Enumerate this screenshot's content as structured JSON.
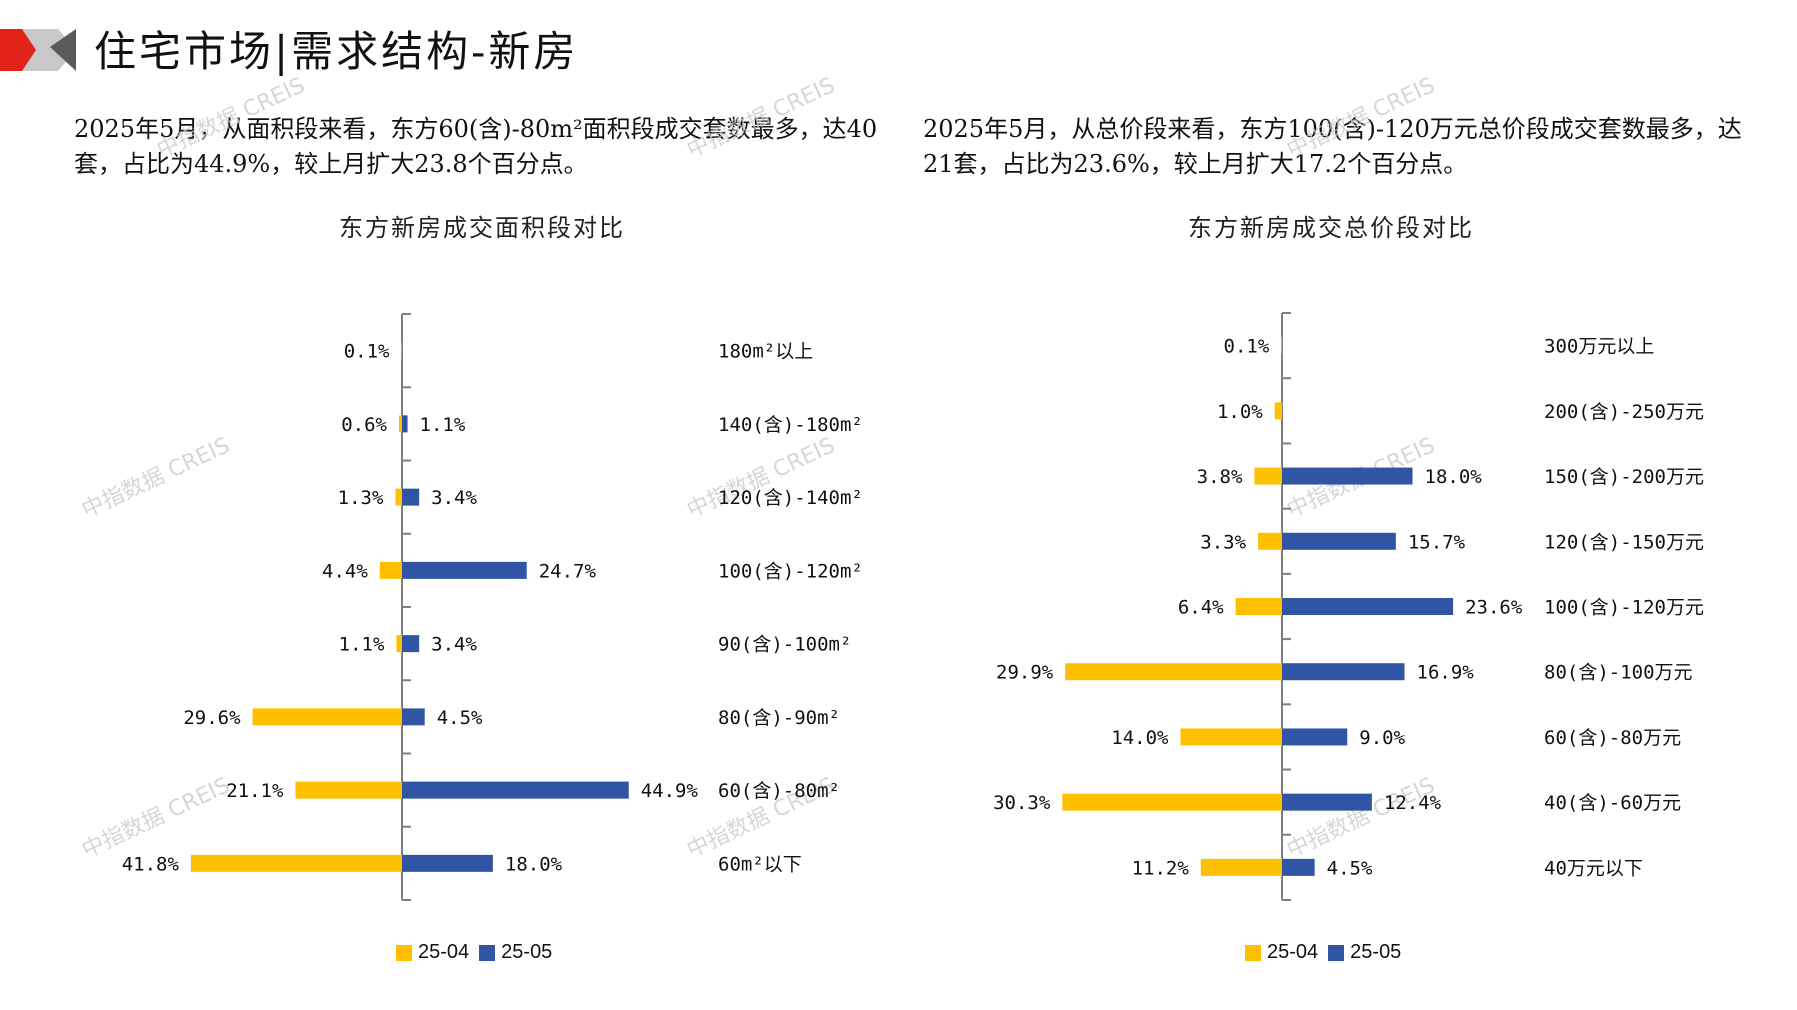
{
  "page": {
    "title": "住宅市场|需求结构-新房",
    "watermark": "中指数据 CREIS",
    "colors": {
      "prev": "#FFC000",
      "curr": "#2F55A4",
      "accent_red": "#E2231A",
      "gray": "#BFBFBF"
    }
  },
  "left": {
    "description": "2025年5月，从面积段来看，东方60(含)-80m²面积段成交套数最多，达40套，占比为44.9%，较上月扩大23.8个百分点。",
    "legend": {
      "prev": "25-04",
      "curr": "25-05"
    }
  },
  "right": {
    "description": "2025年5月，从总价段来看，东方100(含)-120万元总价段成交套数最多，达21套，占比为23.6%，较上月扩大17.2个百分点。",
    "legend": {
      "prev": "25-04",
      "curr": "25-05"
    }
  },
  "chart_data": [
    {
      "type": "bar",
      "orientation": "horizontal-butterfly",
      "title": "东方新房成交面积段对比",
      "categories": [
        "180m²以上",
        "140(含)-180m²",
        "120(含)-140m²",
        "100(含)-120m²",
        "90(含)-100m²",
        "80(含)-90m²",
        "60(含)-80m²",
        "60m²以下"
      ],
      "series": [
        {
          "name": "25-04",
          "direction": "left",
          "values": [
            0.1,
            0.6,
            1.3,
            4.4,
            1.1,
            29.6,
            21.1,
            41.8
          ],
          "labels": [
            "0.1%",
            "0.6%",
            "1.3%",
            "4.4%",
            "1.1%",
            "29.6%",
            "21.1%",
            "41.8%"
          ]
        },
        {
          "name": "25-05",
          "direction": "right",
          "values": [
            null,
            1.1,
            3.4,
            24.7,
            3.4,
            4.5,
            44.9,
            18.0
          ],
          "labels": [
            "",
            "1.1%",
            "3.4%",
            "24.7%",
            "3.4%",
            "4.5%",
            "44.9%",
            "18.0%"
          ]
        }
      ],
      "xlabel": "",
      "ylabel": ""
    },
    {
      "type": "bar",
      "orientation": "horizontal-butterfly",
      "title": "东方新房成交总价段对比",
      "categories": [
        "300万元以上",
        "200(含)-250万元",
        "150(含)-200万元",
        "120(含)-150万元",
        "100(含)-120万元",
        "80(含)-100万元",
        "60(含)-80万元",
        "40(含)-60万元",
        "40万元以下"
      ],
      "series": [
        {
          "name": "25-04",
          "direction": "left",
          "values": [
            0.1,
            1.0,
            3.8,
            3.3,
            6.4,
            29.9,
            14.0,
            30.3,
            11.2
          ],
          "labels": [
            "0.1%",
            "1.0%",
            "3.8%",
            "3.3%",
            "6.4%",
            "29.9%",
            "14.0%",
            "30.3%",
            "11.2%"
          ]
        },
        {
          "name": "25-05",
          "direction": "right",
          "values": [
            null,
            null,
            18.0,
            15.7,
            23.6,
            16.9,
            9.0,
            12.4,
            4.5
          ],
          "labels": [
            "",
            "",
            "18.0%",
            "15.7%",
            "23.6%",
            "16.9%",
            "9.0%",
            "12.4%",
            "4.5%"
          ]
        }
      ],
      "xlabel": "",
      "ylabel": ""
    }
  ]
}
